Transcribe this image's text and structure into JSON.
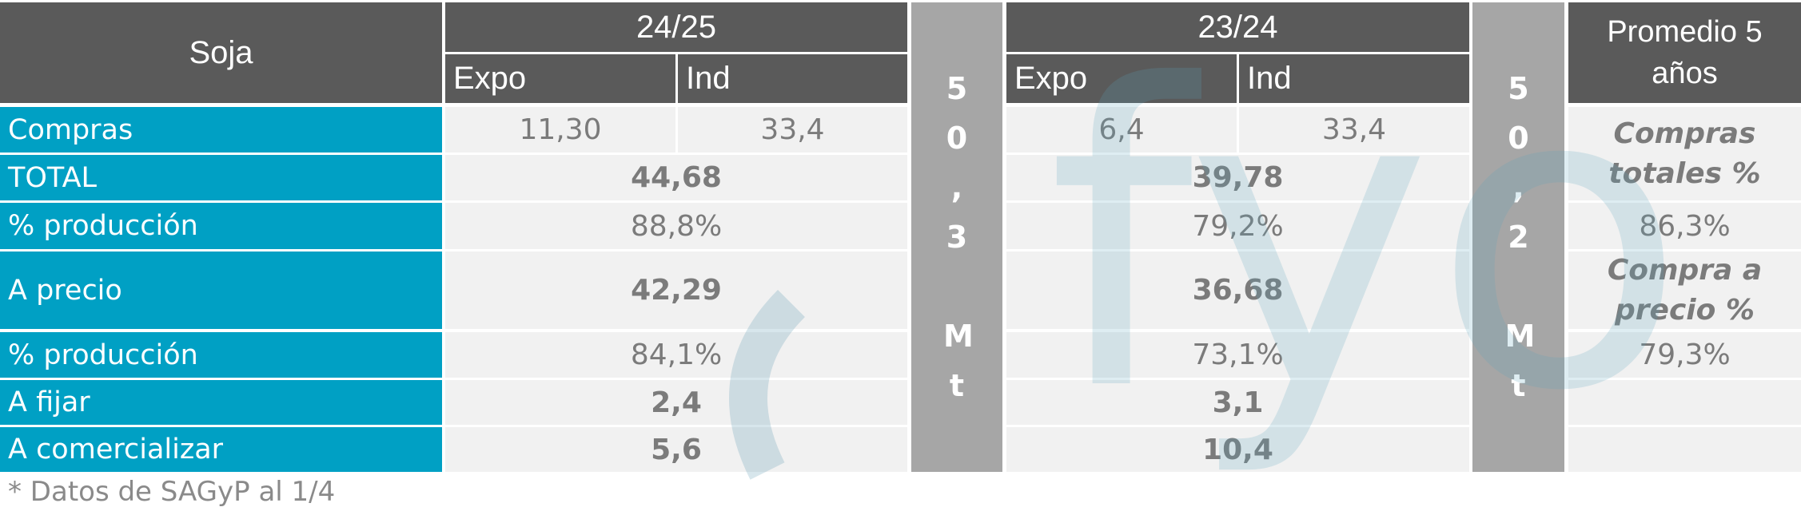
{
  "header": {
    "product": "Soja",
    "season_a": "24/25",
    "season_b": "23/24",
    "avg": "Promedio 5 años",
    "expo": "Expo",
    "ind": "Ind"
  },
  "rows": [
    {
      "label": "Compras",
      "a_expo": "11,30",
      "a_ind": "33,4",
      "b_expo": "6,4",
      "b_ind": "33,4"
    },
    {
      "label": "TOTAL",
      "a": "44,68",
      "b": "39,78"
    },
    {
      "label": "% producción",
      "a": "88,8%",
      "b": "79,2%",
      "avg": "86,3%"
    },
    {
      "label": "A precio",
      "a": "42,29",
      "b": "36,68"
    },
    {
      "label": "% producción",
      "a": "84,1%",
      "b": "73,1%",
      "avg": "79,3%"
    },
    {
      "label": "A fijar",
      "a": "2,4",
      "b": "3,1"
    },
    {
      "label": "A comercializar",
      "a": "5,6",
      "b": "10,4"
    }
  ],
  "avg_labels": {
    "compras_totales": "Compras totales %",
    "compra_precio": "Compra a precio %"
  },
  "production": {
    "a": "50,3 Mt",
    "b": "50,2 Mt"
  },
  "footnote": "* Datos de SAGyP al 1/4",
  "watermark": "fyo",
  "colors": {
    "header": "#5a5a5a",
    "label": "#00a0c4",
    "cell": "#f1f1f1",
    "production": "#a6a6a6",
    "watermark": "#c5dfe6"
  }
}
